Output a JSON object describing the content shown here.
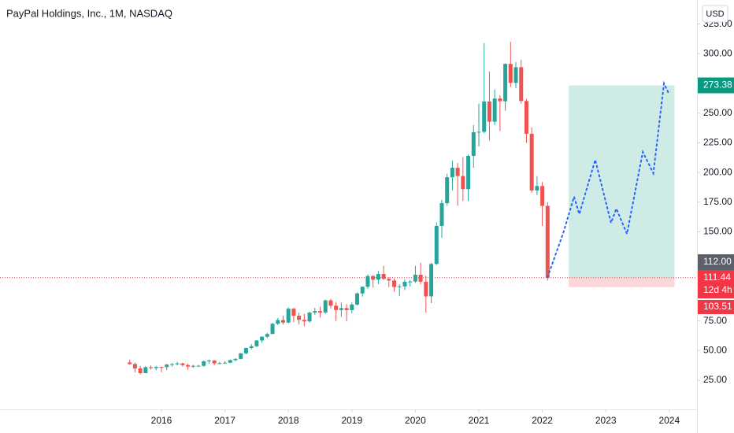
{
  "chart_data": {
    "type": "candlestick",
    "title": "PayPal Holdings, Inc., 1M, NASDAQ",
    "currency": "USD",
    "up_color": "#26a69a",
    "down_color": "#ef5350",
    "x": [
      "2015-07",
      "2015-08",
      "2015-09",
      "2015-10",
      "2015-11",
      "2015-12",
      "2016-01",
      "2016-02",
      "2016-03",
      "2016-04",
      "2016-05",
      "2016-06",
      "2016-07",
      "2016-08",
      "2016-09",
      "2016-10",
      "2016-11",
      "2016-12",
      "2017-01",
      "2017-02",
      "2017-03",
      "2017-04",
      "2017-05",
      "2017-06",
      "2017-07",
      "2017-08",
      "2017-09",
      "2017-10",
      "2017-11",
      "2017-12",
      "2018-01",
      "2018-02",
      "2018-03",
      "2018-04",
      "2018-05",
      "2018-06",
      "2018-07",
      "2018-08",
      "2018-09",
      "2018-10",
      "2018-11",
      "2018-12",
      "2019-01",
      "2019-02",
      "2019-03",
      "2019-04",
      "2019-05",
      "2019-06",
      "2019-07",
      "2019-08",
      "2019-09",
      "2019-10",
      "2019-11",
      "2019-12",
      "2020-01",
      "2020-02",
      "2020-03",
      "2020-04",
      "2020-05",
      "2020-06",
      "2020-07",
      "2020-08",
      "2020-09",
      "2020-10",
      "2020-11",
      "2020-12",
      "2021-01",
      "2021-02",
      "2021-03",
      "2021-04",
      "2021-05",
      "2021-06",
      "2021-07",
      "2021-08",
      "2021-09",
      "2021-10",
      "2021-11",
      "2021-12",
      "2022-01",
      "2022-02"
    ],
    "open": [
      40,
      38.7,
      35,
      31,
      36,
      35.3,
      36.2,
      36.1,
      38.2,
      38.6,
      39.2,
      37.8,
      36.5,
      37.2,
      37.2,
      41,
      41.7,
      39.3,
      39.5,
      39.8,
      42,
      43,
      47.7,
      52.2,
      53.7,
      58.5,
      61.7,
      64,
      72.6,
      75.7,
      73.6,
      85.3,
      79.4,
      75.9,
      74.6,
      82,
      83.3,
      82.1,
      92.3,
      87.8,
      84.2,
      85.8,
      84.1,
      88.8,
      98.2,
      103.8,
      112.8,
      109.8,
      114.5,
      110.4,
      109,
      103.6,
      104.1,
      108,
      108.2,
      113.9,
      108,
      95.7,
      123,
      155,
      174.2,
      196,
      204,
      197,
      186,
      214,
      234,
      234.3,
      259.8,
      242.8,
      262.3,
      260,
      291.5,
      275.5,
      288.7,
      260.2,
      232.6,
      184.9,
      188.6,
      171.9
    ],
    "high": [
      42.5,
      40,
      37,
      37,
      37.5,
      37,
      36.5,
      39,
      39.5,
      40.5,
      39.8,
      39,
      38,
      38,
      41.5,
      42.5,
      42,
      40.5,
      41,
      42.5,
      43.6,
      48,
      52.5,
      55.5,
      59,
      62,
      65,
      73.5,
      77.5,
      79.5,
      86.3,
      86,
      82,
      81,
      83,
      86,
      87,
      93,
      93.6,
      91,
      90.5,
      89,
      90.5,
      99,
      104,
      114,
      113.5,
      117,
      121.5,
      112,
      110.5,
      106,
      110,
      109.5,
      121.5,
      124,
      113,
      124,
      158,
      177,
      199,
      210,
      208,
      213,
      215,
      240,
      258,
      309,
      285,
      270,
      265,
      292,
      310,
      293,
      295,
      262,
      238,
      197,
      192,
      175
    ],
    "low": [
      38,
      31.5,
      30,
      31,
      34,
      33.5,
      31.8,
      33.5,
      36.5,
      37.5,
      36.5,
      34,
      35.5,
      36.5,
      36.5,
      39,
      37.5,
      38.5,
      38.8,
      39.5,
      41,
      42.5,
      47,
      51,
      53,
      56.5,
      60.5,
      64,
      71.5,
      72,
      73,
      74,
      72,
      70.5,
      73.5,
      80,
      78,
      81,
      85.5,
      75,
      78.5,
      74.7,
      81.5,
      88,
      95.5,
      102,
      103,
      106,
      109.5,
      103.5,
      99.5,
      96,
      101,
      104,
      107,
      106,
      82,
      90,
      122,
      145,
      172,
      185,
      172,
      176,
      176,
      204,
      222,
      233,
      227,
      240,
      235,
      252,
      272,
      271,
      258,
      225,
      183,
      181,
      155,
      109
    ],
    "close": [
      38.7,
      35,
      31,
      36,
      35.3,
      36.2,
      36.1,
      38.2,
      38.6,
      39.2,
      37.8,
      36.5,
      37.2,
      37.2,
      41,
      41.7,
      39.3,
      39.5,
      39.8,
      42,
      43,
      47.7,
      52.2,
      53.7,
      58.5,
      61.7,
      64,
      72.6,
      75.7,
      73.6,
      85.3,
      79.4,
      75.9,
      74.6,
      82,
      83.3,
      82.1,
      92.3,
      87.8,
      84.2,
      85.8,
      84.1,
      88.8,
      98.2,
      103.8,
      112.8,
      109.8,
      114.5,
      110.4,
      109,
      103.6,
      104.1,
      108,
      108.2,
      113.9,
      108,
      95.7,
      123,
      155,
      174.2,
      196,
      204,
      197,
      186,
      214,
      234,
      234.3,
      259.8,
      242.8,
      262.3,
      260,
      291.5,
      275.5,
      288.7,
      260.2,
      232.6,
      184.9,
      188.6,
      171.9,
      111.44
    ],
    "ylim": [
      0.5,
      345.3
    ],
    "yticks": [
      {
        "value": 25,
        "label": "25.00"
      },
      {
        "value": 50,
        "label": "50.00"
      },
      {
        "value": 75,
        "label": "75.00"
      },
      {
        "value": 150,
        "label": "150.00"
      },
      {
        "value": 175,
        "label": "175.00"
      },
      {
        "value": 200,
        "label": "200.00"
      },
      {
        "value": 225,
        "label": "225.00"
      },
      {
        "value": 250,
        "label": "250.00"
      },
      {
        "value": 300,
        "label": "300.00"
      },
      {
        "value": 325,
        "label": "325.00"
      }
    ],
    "xticks": [
      2016,
      2017,
      2018,
      2019,
      2020,
      2021,
      2022,
      2023,
      2024
    ],
    "projection": {
      "color": "#2962ff",
      "x": [
        "2022-02",
        "2022-05",
        "2022-07",
        "2022-08",
        "2022-11",
        "2023-02",
        "2023-03",
        "2023-05",
        "2023-08",
        "2023-10",
        "2023-12",
        "2024-01"
      ],
      "values": [
        111.9,
        149.7,
        179.5,
        165,
        210.7,
        157.6,
        169.6,
        148.3,
        217.3,
        199.4,
        275,
        265.7
      ]
    },
    "position": {
      "start": "2022-06",
      "end": "2024-02",
      "entry": 111.44,
      "target": 273.38,
      "stop": 103.51
    },
    "crosshair": {
      "value": 112,
      "label": "112.00"
    },
    "countdown": "12d 4h"
  }
}
